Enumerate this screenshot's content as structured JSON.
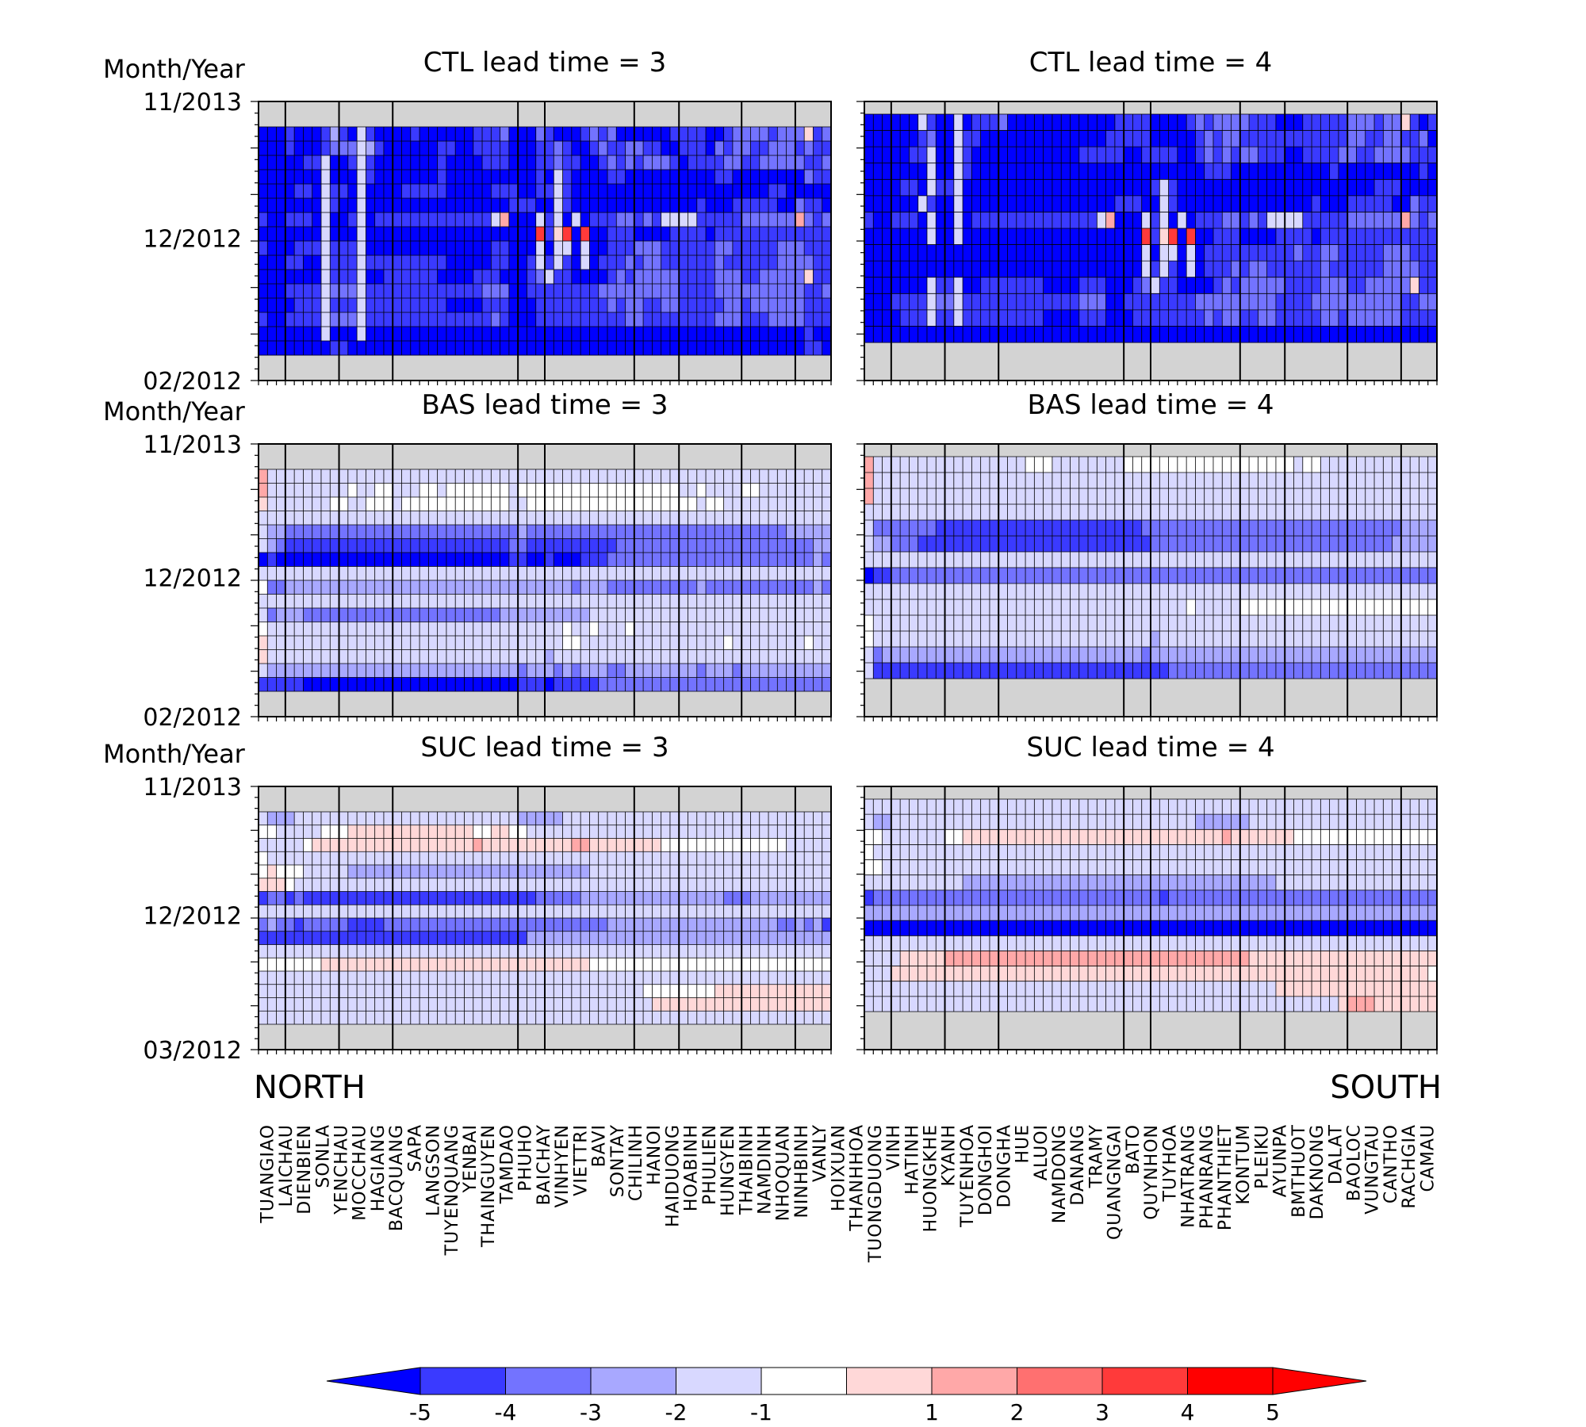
{
  "chart_data": {
    "type": "heatmap",
    "colorbar": {
      "ticks": [
        "-5",
        "-4",
        "-3",
        "-2",
        "-1",
        "1",
        "2",
        "3",
        "4",
        "5"
      ],
      "colors": [
        "#0000ff",
        "#3a3aff",
        "#7373ff",
        "#a8a8ff",
        "#d8d8ff",
        "#ffffff",
        "#ffd8d8",
        "#ffa8a8",
        "#ff7070",
        "#ff3a3a",
        "#ff0000"
      ],
      "extend": "both"
    },
    "stations": [
      "TUANGIAO",
      "LAICHAU",
      "DIENBIEN",
      "SONLA",
      "YENCHAU",
      "MOCCHAU",
      "HAGIANG",
      "BACQUANG",
      "SAPA",
      "LANGSON",
      "TUYENQUANG",
      "YENBAI",
      "THAINGUYEN",
      "TAMDAO",
      "PHUHO",
      "BAICHAY",
      "VINHYEN",
      "VIETTRI",
      "BAVI",
      "SONTAY",
      "CHILINH",
      "HANOI",
      "HAIDUONG",
      "HOABINH",
      "PHULIEN",
      "HUNGYEN",
      "THAIBINH",
      "NAMDINH",
      "NHOQUAN",
      "NINHBINH",
      "VANLY",
      "HOIXUAN",
      "THANHHOA",
      "TUONGDUONG",
      "VINH",
      "HATINH",
      "HUONGKHE",
      "KYANH",
      "TUYENHOA",
      "DONGHOI",
      "DONGHA",
      "HUE",
      "ALUOI",
      "NAMDONG",
      "DANANG",
      "TRAMY",
      "QUANGNGAI",
      "BATO",
      "QUYNHON",
      "TUYHOA",
      "NHATRANG",
      "PHANRANG",
      "PHANTHIET",
      "KONTUM",
      "PLEIKU",
      "AYUNPA",
      "BMTHUOT",
      "DAKNONG",
      "DALAT",
      "BAOLOC",
      "VUNGTAU",
      "CANTHO",
      "RACHGIA",
      "CAMAU"
    ],
    "group_boundaries_after_index": [
      2,
      8,
      14,
      28,
      31,
      41,
      46,
      53,
      59
    ],
    "region_labels": {
      "left": "NORTH",
      "right": "SOUTH"
    },
    "panels": [
      {
        "title": "CTL  lead  time  =  3",
        "ylabel": "Month/Year",
        "yticks": [
          "11/2013",
          "12/2012",
          "02/2012"
        ],
        "top_gray_rows": 2,
        "bottom_gray_rows": 2,
        "rows": [
          "AAABAAABDBAEBAAAABAAAAAABBBCAAACBAAABCBCAAAAAABBBBAABCCCCBCCCGBCBC",
          "AAABAAABCCCEDBAAAAAABBAABBBBAAABBCBAABCBBCCBBAABBBACBCCBBCCCBCBBD",
          "AAAAABBEAABEBAAAAAAABAAAABBBAAABBCBBAABCBCBCCCBABBBBCCBBCCCCCBBCD",
          "AAAAAAAEAAAEBAAAAAAABAAAAAAAAAABAEBAAAABBAAAAAAAAAABBAAAAAAAACBBAA",
          "AAAABBAEBBAEAAAABBBBBAAAAABBBAABBEBAAAAAAAAAAAAAAAAAAAAAABBAAAAAAA",
          "AAAAAAAEBAAEAAAAAAAAAAAAAAAABBBAAEBAAAAAAAAAAAAAABAAABBBBBAACBBAAA",
          "BAABBBAEAABEABBBBBBBBBBBBBEHAAAEBEAEABBBCCBCBEEEEBBBBBCCCCCCHCBCAB",
          "AAAAAAAEAAAEAAAAAAAAAAAAAAAAAAAJBGJAJAABBBAAAABBBBABBBBBBBBBBBBBBB",
          "BAAABBBEBBBEAAAAAAAAAAAAAABBAAAEAEEAEAABBBCCCBBBBBBCCBBBBBCCCBBBBB",
          "AAABBAAEBBBEBBBBBBBBBAAAAABBAABEBEBAEABBBCBCCBBBBBBCBBBBBBCCCCBBBC",
          "AAAAAAAEBBBEAABBBBBBAAAABBBAAABCEBBAAAABCBCCCCCBBBBCCCBBCCCCCGBBBB",
          "AAABBBBECCCEBBBBBBBBBBBBBCCCAABBBBBBBBCCCCCCCCCBBBBCCCCCCCCCCBBCCB",
          "AAAABBBEBBBEBBBBBBBBBAAAABBBAAABBBBBBBBCBCCBBCCBBBBBCCBCCCCCCBBBBC",
          "BAABBBBECCCEBBBBBBBBBBBBBBCBAAABBBBBBBBBBCCBBBBBBBBCCCBBBCCCCBBBBB",
          "AAAAAAAEAAAEAAAAAAAAAAAAAAAAAAAAAAAAAAAAAAAAAAAAAAAAAAAAAAAAABAAAA",
          "AAAAAAAABBAAAAAAAAAAAAAAAAAAAAAAAAAAAAAAAAAAAAAAAAAAAAAAAAAAABBAAA"
        ]
      },
      {
        "title": "CTL  lead  time  =  4",
        "ylabel": "",
        "yticks": [],
        "top_gray_rows": 1,
        "bottom_gray_rows": 4,
        "rows": [
          "AAAAAAEBAAEABBBCAAAAAAAAAAAABBBBAAAABCBCCCCBBBAAABBBBBCCCBCCGBABB",
          "AAAAAABCAAEBBAAAAAAAAAAAAAABBBBBAAAAABCBCCBBBBBBBBBBBBCCBBCCBBCAAB",
          "AAAAABBEAAEBAAAAAAAAAAAABBBBBAABBBBAABCBCBCCBBBAABBBBCCBBCCCCBBBAB",
          "AAAAAAAEAAEBAAAAAAAAAAAAAAAAAAAAAAAAAABBBAAAAAAAAAAABAAAAAAAAABAAA",
          "AAAABBAEBBEAAAAAAAAAAAAAAAAAAAAABEBAAAAAAAAAAAAAAAAAAAAAABBBAAAAAAA",
          "AAAAAAEBAAEAAAAAAAAAAAAAAAAABBBAAEBAAAAAAAAAAAAAAABAAABBBBBAACBBAAA",
          "BAABBBAEAAEABBBBBBBBBBBBBBEHAAAEBEAEABBBCCBCBEEEEBBBBBCCCCCCHCBCAB",
          "AAAAAAAEAAEAAAAAAAAAAAAAAAAAAAAJBGJAJAABBBAAAABBBBABBBBBBBBBBBBBBB",
          "AAAAAAAAAAAAAAAAAAAAAAAAAAAAAAAEAEEAEABBBBBBBBBBCBBCCBBBBBCCCBBBBB",
          "AAAAAAAAAAAAAAAAAAAAAAAAAAAAAAAEBEBAEABBBCBCCBBBBBBCBBBBBBCCCCBBBC",
          "AAAAAAAEBBEAABBBBBBBAAAABBBAAABCEBBAAAABCBCCCCCBBBBCCCBBCCCCCGBBBB",
          "AAABBBBECCEBBBBBBBBBBBBBCCCAABBBBBBBBCCCCCCCCCBBBBCCCCCCCCCCBBCCB",
          "AAAABBBEBBEBBBBBBBBBAAAABBBAAABBBBBBBBCBCCBBCCBBBBBCCBCCCCCCBBBBC",
          "AAAAAAAAAAAAAAAAAAAAAAAAAAAAAAAAAAAAAAAAAAAAAAAAAAAAAAAAAAAAAAAA"
        ]
      },
      {
        "title": "BAS  lead  time  =  3",
        "ylabel": "Month/Year",
        "yticks": [
          "11/2013",
          "12/2012",
          "02/2012"
        ],
        "top_gray_rows": 2,
        "bottom_gray_rows": 2,
        "rows": [
          "HEEEEEEEEEEEEEEEEEEEEEEEEEEEEEEEEEEEEEEEEEEEEEEEEEEEEEEEEEEEEEEEEE",
          "HEEEEEEEEEFEEFFEEEFFEFFFFFFFEFFFFFFFFFFFFFFFFFFEEFEEEEFFEEEEEEEEEE",
          "GEEEEEEEFFEEFFFEFFFFFFFFFFFFEEFFFFFFFFFFFFFFFFFFFEFFEEEEEEEEEEEEEE",
          "EEEEEEEEEEEEEEEEEEEEEEEEEEEEEEEEEEEEEEEEEEEEEEEEEEEEEEEEEEEEEEEEEE",
          "EDDCCCCCCCCCCCCCCCCCCCCCCCCCCDCCCCCCCCCCCCCCCCCCCCCCCCCCCCCDDDDDDD",
          "EDCBBBBBBBBBBBBBBBBBBBBBBBBBCCBBBBBBBBBBCCCCCCCCCCCCCCCCCCCCCCDDDDD",
          "ABAAAAAAAAAAAAAAAAAAAAAAAAAABBAABAAABBBCCCCCCCCCCCCCCCCCCCCCCCDCCC",
          "EEEEEEEEEEEEEEEEEEEEEEEEEEEEEEEEEEEEEEEEEEEEEEEEEEEEEEEEEEEEEEEEEE",
          "FCCDDDDDDDDDDDDDDDDDDDDDDDDDDDDDDDDCDDDCCCCCCCCCCDCCCCCCCCCCCCDCDC",
          "EEEEEEEEEEEEEEEEEEEEEEEEEEEEEEEEEEEEEEEEEEEEEEEEEEEEEEEEEEEEEEEEEE",
          "ECDDDCCCCCCCCCCCCCCCCCCCCCCDDDDDDDDDDEEEEEEEEEEEEEEEEEEEEEEEEEEEEE",
          "FEEEEEEEEEEEEEEEEEEEEEEEEEEEEEEEEEFEEFEEEFEEEEEEEEEEEEEEEEEEEEEEEE",
          "GEEEEEEEEEEEEEEEEEEEEEEEEEEEEEEEEEFFEEEEEEEEEEEEEEEEFEEEEEEEEFEEEE",
          "GEEEEEEEEEEEEEEEEEEEEEEEEEEEEEEEDEEEEEEEEEEEEEEEEEEEEEEEEEEEEEEEEE",
          "EDDDDDDDDDDDDDDDDDDDDDDDDDDDDCDDDCDCDDDCCDDDDDDDDCDDDCDDDDDDDDDDCD",
          "BBBBBAAAAAAAAAAAAAAAAAAAAAAAABBBABBBBBCCCCCCCCCCCCCCCCCCCCCCCCCCCC"
        ]
      },
      {
        "title": "BAS  lead  time  =  4",
        "ylabel": "",
        "yticks": [],
        "top_gray_rows": 1,
        "bottom_gray_rows": 4,
        "rows": [
          "HEEEEEEEEEEEEEEEEEFFFEEEEEEEEFFFFFFFFFFFFFFFFFFFEFFEEEEEEEEEEEEEEE",
          "HEEEEEEEEEEEEEEEEEEEEEEEEEEEEEEEEEEEEEEEEEEEEEEEEEEEEEEEEEEEEEEEEE",
          "HEEEEEEEEEEEEEEEEEEEEEEEEEEEEEEEEEEEEEEEEEEEEEEEEEEEEEEEEEEEEEEEEE",
          "EEEEEEEEEEEEEEEEEEEEEEEEEEEEEEEEEEEEEEEEEEEEEEEEEEEEEEEEEEEEEEEEEE",
          "ECCCCCCCBBBBBBBBBBBBBBBBBBBBBBBCCCCCCCCCCCCCCCCCCCCCCCCCCCCCDDDDD",
          "EDDCCCBBBBBBBBBBBBBBBBBBBBBBBBBBCCCCCCCCCCCCCCCCCCCCCCCCCCCDDDDD",
          "EEEEEEEEEEEEEEEEEEEEEEEEEEEEEEEEEEEEEEEEEEEEEEEEEEEEEEEEEEEEEEEE",
          "ABBCCCCCCCCCCCCCCCCCCCCCCCCCCCCCCCCCCCCCCCCCCCCCCCCCCCCCCCCCCCCC",
          "EEEEEEEEEEEEEEEEEEEEEEEEEEEEEEEEEEEEEEEEEEEEEEEEEEEEEEEEEEEEEEEE",
          "EEEEEEEEEEEEEEEEEEEEEEEEEEEEEEEEEEEEFEEEEEFFFFFFFFFFFFFFFFFFFFFF",
          "FEEEEEEEEEEEEEEEEEEEEEEEEEEEEEEEEEEEEEEEEEEEEEEEEEEEEEEEEEEEEEEE",
          "FEEEEEEEEEEEEEEEEEEEEEEEEEEEEEEEDEEEEEEEEEEEEEEEEEEEEEEEEEEEEEEE",
          "ECDDDDDDDDDDDDDDDDDDDDDDDDDDDDDCDDDDDDDDDDDDDDDDDDDDDDDDDDDDDDDDDD",
          "EBBBBBBBBBBBBBBBBBBBBBBBBBBBBBBBBBCCCCCCCCCCCCCCCCCCCCCCCCCCCCCC"
        ]
      },
      {
        "title": "SUC  lead  time  =  3",
        "ylabel": "Month/Year",
        "yticks": [
          "11/2013",
          "12/2012",
          "03/2012"
        ],
        "top_gray_rows": 2,
        "bottom_gray_rows": 2,
        "rows": [
          "EDDDEEEEEEEEEEEEEEEEEEEEEEEEEDDDDDEEEEEEEEEEEEEEEEEEEEEEEEEEEEEEE",
          "FFEEEEEFFFGGGGGGGGGGGGGGFFGGFFEEEEEEEEEEEEEEEEEEEEEEEEEEEEEEEEEEE",
          "EEEEEFGGGGGGGGGGGGGGGGGGHGGGGGGGGGGHHGGGGGGGGFFFFFFFFFFFFFFEEEEEE",
          "FEEEEEEEEEEEEEEEEEEEEEEEEEEEEEEEEEEEEEEEEEEEEEEEEEEEEEEEEEEEEEEEEE",
          "FGFFFEEEEEDDDDDDDDDDDDDDDDDDDDDDDDDDDEEEEEEEEEEEEEEEEEEEEEEEEEEEEE",
          "GGGFEEEEEEEEEEEEEEEEEEEEEEEEEEEEEEEEEEEEEEEEEEEEEEEEEEEEEEEEEEEEEE",
          "BCCBCBBBBBBBBBBBBBBBBBBBBBBBBBBCCCCCDDDDDDDDDDDDDDDDCCCDDDDDDDDDD",
          "EEEEEEEEEEEEEEEEEEEEEEEEEEEEEEEEEEEEEEEEEEEEEEEEEEEEEEEEEEEEEEEEE",
          "CDCCBCCCCCBBBBCCCCCCCCCCCCCCCCCCCCCCCCCDDDDDDDDDDDDDDDDDDDCCDCDBC",
          "BBBBBBBBBBBBBBBBBBBBBBBBBBBBBBDDDDDDDDDDDDDDDDDDDDDDDDDDDDDDDDDDDD",
          "EEEEEEEEEEEEEEEEEEEEEEEEEEEEEEEEEEEEEEEEEEEEEEEEEEEEEEEEEEEEEEEEE",
          "FFFFFFFGGGGGGGGGGGGGGGGGGGGGGGGGGGGGGFFFFFFFFFFFFFFFFFFFFFFFFFFFE",
          "EEEEEEEEEEEEEEEEEEEEEEEEEEEEEEEEEEEEEEEEEEEEEEEEEEEEEEEEEEEEEEEEE",
          "EEEEEEEEEEEEEEEEEEEEEEEEEEEEEEEEEEEEEEEEEEEFFFFFFFFGGGGGGGGGGGGGE",
          "EEEEEEEEEEEEEEEEEEEEEEEEEEEEEEEEEEEEEEEEEEEEGGGGGGGGGGGGGGGGGGGGE",
          "EEEEEEEEEEEEEEEEEEEEEEEEEEEEEEEEEEEEEEEEEEEEEEEEEEEEEEEEEEEEEEEEE"
        ]
      },
      {
        "title": "SUC  lead  time  =  4",
        "ylabel": "",
        "yticks": [],
        "top_gray_rows": 1,
        "bottom_gray_rows": 4,
        "rows": [
          "EEEEEEEEEEEEEEEEEEEEEEEEEEEEEEEEEEEEEEEEEEEEEEEEEEEEEEEEEEEEEEEEE",
          "EDDEEEEEEEEEEEEEEEEEEEEEEEEEEEEEEEEEEDDDDDDEEEEEEEEEEEEEEEEEEEEEEE",
          "FFEEEEEEEFFGGGGGGGGGGGGGGGGGGGGGGGGGGGGGHGGGGGGGFFFFFFFFFFFFFFFF",
          "FEEEEEEEEEEEEEEEEEEEEEEEEEEEEEEEEEEEEEEEEEEEEEEEEEEEEEEEEEEEEEEEE",
          "FFEEEEEEEEEEEEEEEEEEEEEEEEEEEEEEEEEEEEEEEEEEEEEEEEEEEEEEEEEEEEEEE",
          "EEEEEEEEEEEDDDDDDDDDDDDDDDDDDDDDDDDDDDDDDDDDDDEEEEEEEEEEEEEEEEEEE",
          "BCCCCCCCCCCCCCCCCCCCCCCCCCCCCCCCCBCCCCCCCCCCCCCCCCCCCCCCCCCCCCCCC",
          "DDDDDDDDDDDDDDDDDDDDDDDDDDDDDDDDDDDDDDDDDDDDDDDDDDDDDDDDDDDDDDDDD",
          "AAAAAAAAAAAAAAAAAAAAAAAAAAAAAAAAAAAAAAAAAAAAAAAAAAAAAAAAAAAAAAAA",
          "EEEEEEEEEEEEEEEEEEEEEEEEEEEEEEEEEEEEEEEEEEEEEEEEEEEEEEEEEEEEEEEEE",
          "EEEEGGGGGHHHHHHHHHHHHHHHHHHHHHHHHHHHHHHHHHHGGGGGGGGGGGGGGGGGGGGGG",
          "EEEGGGGGGGGGGGGGGGGGGGGGGGGGGGGGGGGGGGGGGGGGGGGGGGGGGGGGGGGGGGG",
          "EEEEEEEEEEEEEEEEEEEEEEEEEEEEEEEEEEEEEEEEEEEEEEGGGGGGGGGGGGGGGGGG",
          "EEEEEEEEEEEEEEEEEEEEEEEEEEEEEEEEEEEEEEEEEEEEEEEEEEEEEGHHHGGGGGGGG"
        ]
      }
    ]
  }
}
